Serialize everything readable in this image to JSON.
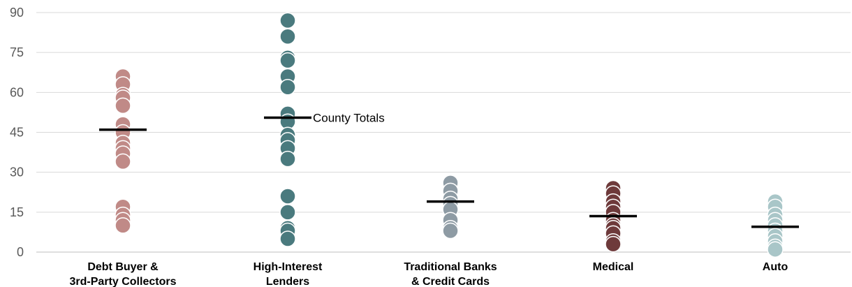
{
  "chart_data": {
    "type": "scatter",
    "title": "",
    "xlabel": "",
    "ylabel": "",
    "ylim": [
      0,
      90
    ],
    "yticks": [
      0,
      15,
      30,
      45,
      60,
      75,
      90
    ],
    "grid": true,
    "categories": [
      {
        "lines": [
          "Debt Buyer &",
          "3rd-Party Collectors"
        ],
        "color": "#c08a87",
        "total": 46,
        "values": [
          66,
          63,
          59,
          58,
          55,
          48,
          45,
          41,
          39,
          37,
          34,
          17,
          14,
          12,
          10
        ]
      },
      {
        "lines": [
          "High-Interest",
          "Lenders"
        ],
        "color": "#4a7a7e",
        "total": 50.5,
        "values": [
          87,
          81,
          73,
          72,
          66,
          62,
          52,
          49,
          44,
          42,
          39,
          35,
          21,
          15,
          9,
          8,
          5
        ]
      },
      {
        "lines": [
          "Traditional Banks",
          "& Credit Cards"
        ],
        "color": "#8e9ba4",
        "total": 19,
        "values": [
          26,
          23,
          20,
          18,
          16,
          12,
          9,
          8
        ]
      },
      {
        "lines": [
          "Medical"
        ],
        "color": "#6e3a3b",
        "total": 13.5,
        "values": [
          24,
          22,
          19,
          17,
          15,
          12,
          10,
          9,
          7,
          4,
          3
        ]
      },
      {
        "lines": [
          "Auto"
        ],
        "color": "#a9c6c8",
        "total": 9.5,
        "values": [
          19,
          17,
          14,
          12,
          10,
          8,
          6,
          4,
          2,
          1
        ]
      }
    ],
    "annotation": {
      "text": "County Totals",
      "category_index": 1
    }
  }
}
